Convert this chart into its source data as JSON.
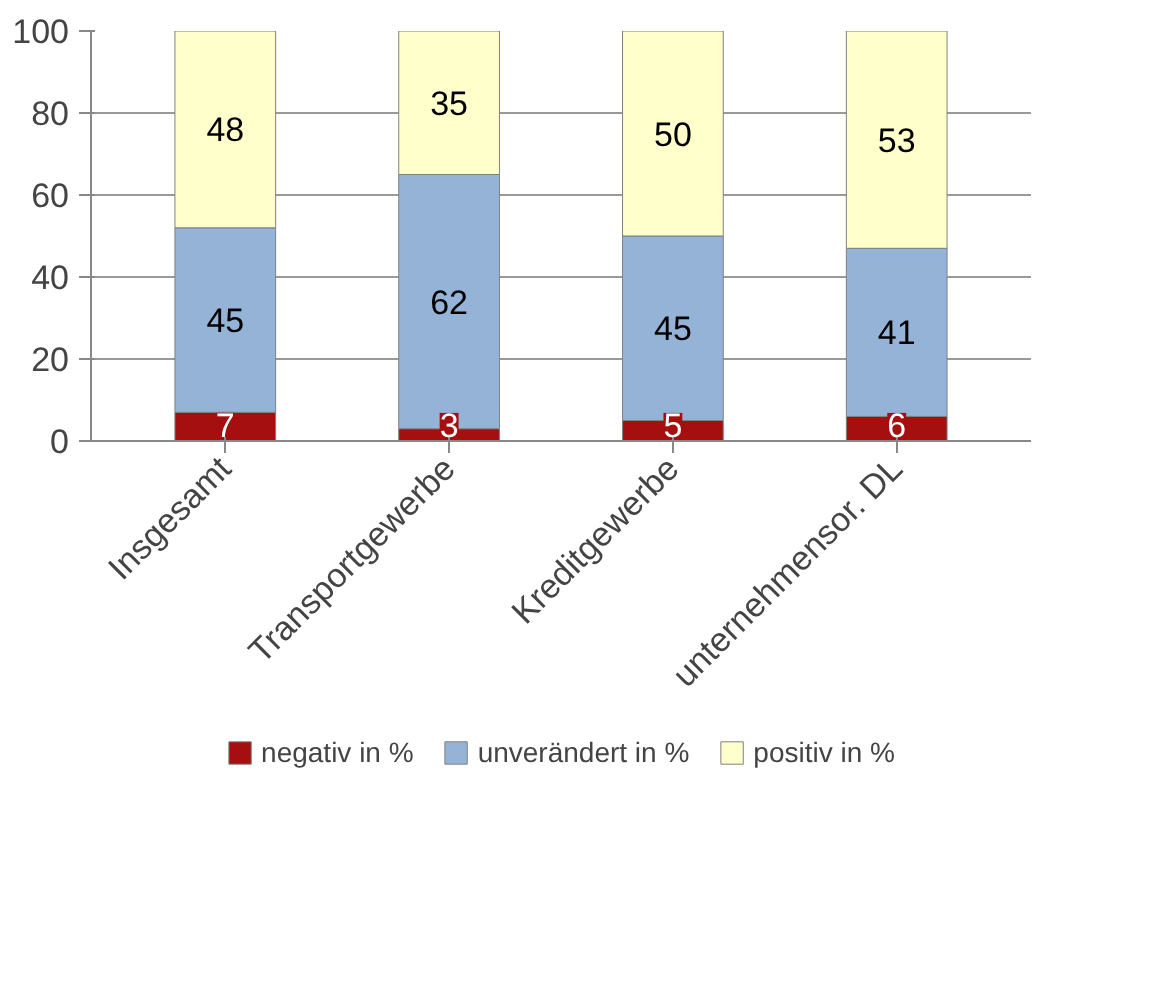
{
  "chart_data": {
    "type": "bar",
    "stacked": true,
    "categories": [
      "Insgesamt",
      "Transportgewerbe",
      "Kreditgewerbe",
      "unternehmensor. DL"
    ],
    "series": [
      {
        "name": "negativ in %",
        "color": "#a50f0f",
        "values": [
          7,
          3,
          5,
          6
        ]
      },
      {
        "name": "unverändert in %",
        "color": "#95b3d7",
        "values": [
          45,
          62,
          45,
          41
        ]
      },
      {
        "name": "positiv in %",
        "color": "#ffffcc",
        "values": [
          48,
          35,
          50,
          53
        ]
      }
    ],
    "ylim": [
      0,
      100
    ],
    "yticks": [
      0,
      20,
      40,
      60,
      80,
      100
    ],
    "grid": "y",
    "legend": "bottom",
    "data_labels": true
  }
}
